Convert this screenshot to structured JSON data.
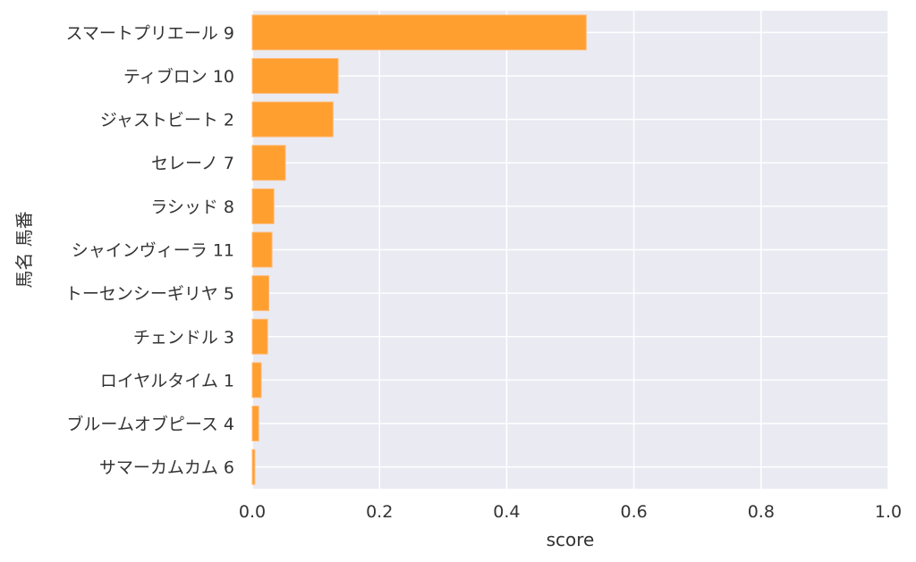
{
  "chart_data": {
    "type": "bar",
    "orientation": "horizontal",
    "xlabel": "score",
    "ylabel": "馬名 馬番",
    "xlim": [
      0.0,
      1.0
    ],
    "xticks": [
      "0.0",
      "0.2",
      "0.4",
      "0.6",
      "0.8",
      "1.0"
    ],
    "grid": true,
    "categories": [
      "スマートプリエール 9",
      "ティブロン 10",
      "ジャストビート 2",
      "セレーノ 7",
      "ラシッド 8",
      "シャインヴィーラ 11",
      "トーセンシーギリヤ 5",
      "チェンドル 3",
      "ロイヤルタイム 1",
      "ブルームオブピース 4",
      "サマーカムカム 6"
    ],
    "values": [
      0.525,
      0.135,
      0.127,
      0.052,
      0.034,
      0.031,
      0.026,
      0.024,
      0.014,
      0.01,
      0.004
    ],
    "colors": {
      "bar": "#ff9f30",
      "bar_edge": "#ffb870",
      "plot_background": "#eaeaf2",
      "grid": "#ffffff"
    }
  }
}
